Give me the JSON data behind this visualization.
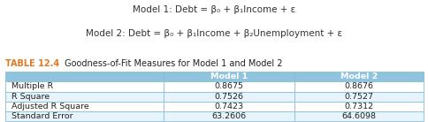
{
  "title_line1": "Model 1: Debt = β₀ + β₁Income + ε",
  "title_line2": "Model 2: Debt = β₀ + β₁Income + β₂Unemployment + ε",
  "table_label": "TABLE 12.4",
  "table_desc": " Goodness-of-Fit Measures for Model 1 and Model 2",
  "col_headers": [
    "",
    "Model 1",
    "Model 2"
  ],
  "rows": [
    [
      "Multiple R",
      "0.8675",
      "0.8676"
    ],
    [
      "R Square",
      "0.7526",
      "0.7527"
    ],
    [
      "Adjusted R Square",
      "0.7423",
      "0.7312"
    ],
    [
      "Standard Error",
      "63.2606",
      "64.6098"
    ]
  ],
  "header_bg": "#8ec4de",
  "header_text": "#ffffff",
  "row_bg_odd": "#ffffff",
  "row_bg_even": "#e8f4fb",
  "table_label_color": "#e07820",
  "title_color": "#333333",
  "border_color": "#8cbdd6",
  "text_color": "#222222",
  "fig_bg": "#ffffff",
  "title_fontsize": 7.5,
  "label_fontsize": 7.0,
  "cell_fontsize": 6.8
}
